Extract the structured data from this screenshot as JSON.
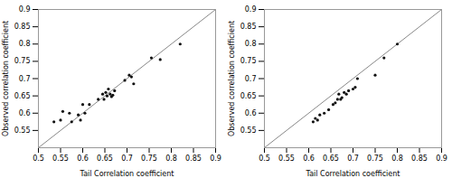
{
  "chart_data": [
    {
      "type": "scatter",
      "xlabel": "Tail Correlation coefficient",
      "ylabel": "Observed correlation coefficient",
      "xlim": [
        0.5,
        0.9
      ],
      "ylim": [
        0.5,
        0.9
      ],
      "xticks": [
        0.5,
        0.55,
        0.6,
        0.65,
        0.7,
        0.75,
        0.8,
        0.85,
        0.9
      ],
      "yticks": [
        0.55,
        0.6,
        0.65,
        0.7,
        0.75,
        0.8,
        0.85,
        0.9
      ],
      "series": [
        {
          "type": "line",
          "color": "#888888",
          "x": [
            0.5,
            0.9
          ],
          "values": [
            0.5,
            0.9
          ]
        },
        {
          "type": "scatter",
          "color": "#111111",
          "x": [
            0.535,
            0.55,
            0.555,
            0.57,
            0.575,
            0.59,
            0.595,
            0.6,
            0.605,
            0.615,
            0.635,
            0.645,
            0.648,
            0.652,
            0.655,
            0.658,
            0.662,
            0.665,
            0.668,
            0.672,
            0.695,
            0.705,
            0.71,
            0.715,
            0.755,
            0.775,
            0.82
          ],
          "values": [
            0.575,
            0.58,
            0.605,
            0.6,
            0.575,
            0.595,
            0.58,
            0.625,
            0.6,
            0.625,
            0.64,
            0.655,
            0.64,
            0.66,
            0.65,
            0.67,
            0.655,
            0.648,
            0.652,
            0.665,
            0.695,
            0.71,
            0.705,
            0.685,
            0.76,
            0.755,
            0.8
          ]
        }
      ]
    },
    {
      "type": "scatter",
      "xlabel": "Tail Correlation coefficient",
      "ylabel": "Observed correlation coefficient",
      "xlim": [
        0.5,
        0.9
      ],
      "ylim": [
        0.5,
        0.9
      ],
      "xticks": [
        0.5,
        0.55,
        0.6,
        0.65,
        0.7,
        0.75,
        0.8,
        0.85,
        0.9
      ],
      "yticks": [
        0.55,
        0.6,
        0.65,
        0.7,
        0.75,
        0.8,
        0.85,
        0.9
      ],
      "series": [
        {
          "type": "line",
          "color": "#888888",
          "x": [
            0.5,
            0.9
          ],
          "values": [
            0.5,
            0.9
          ]
        },
        {
          "type": "scatter",
          "color": "#111111",
          "x": [
            0.61,
            0.615,
            0.62,
            0.625,
            0.635,
            0.645,
            0.655,
            0.66,
            0.665,
            0.668,
            0.672,
            0.675,
            0.68,
            0.685,
            0.69,
            0.7,
            0.705,
            0.71,
            0.75,
            0.77,
            0.8
          ],
          "values": [
            0.575,
            0.585,
            0.58,
            0.595,
            0.6,
            0.61,
            0.625,
            0.63,
            0.64,
            0.655,
            0.64,
            0.645,
            0.66,
            0.655,
            0.665,
            0.67,
            0.675,
            0.7,
            0.71,
            0.76,
            0.8
          ]
        }
      ]
    }
  ]
}
